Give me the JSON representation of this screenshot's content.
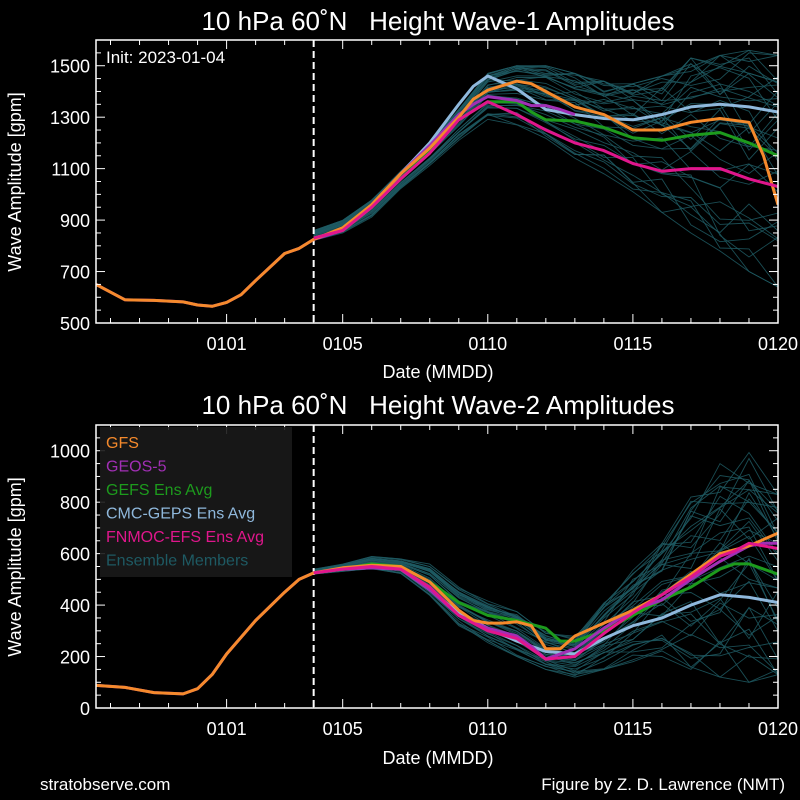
{
  "footer": {
    "left": "stratobserve.com",
    "right": "Figure by Z. D. Lawrence (NMT)"
  },
  "colors": {
    "background": "#000000",
    "axes": "#ffffff",
    "GFS": "#f58a2c",
    "GEOS-5": "#a12fb5",
    "GEFS Ens Avg": "#1d9b1d",
    "CMC-GEPS Ens Avg": "#8fb8dc",
    "FNMOC-EFS Ens Avg": "#e0168c",
    "Ensemble Members": "#1e5a63"
  },
  "chart_data": [
    {
      "type": "line",
      "title": "10 hPa 60˚N   Height Wave-1 Amplitudes",
      "xlabel": "Date (MMDD)",
      "ylabel": "Wave Amplitude [gpm]",
      "annotation": "Init: 2023-01-04",
      "x_tick_labels": [
        "0101",
        "0105",
        "0110",
        "0115",
        "0120"
      ],
      "x_tick_days": [
        0,
        4,
        9,
        14,
        19
      ],
      "y_ticks": [
        500,
        700,
        900,
        1100,
        1300,
        1500
      ],
      "xlim_days": [
        -4.5,
        19
      ],
      "ylim": [
        500,
        1600
      ],
      "init_day": 3,
      "grid": false,
      "legend": "none",
      "ensemble_members": "many thin lines spanning roughly the range shown",
      "ensemble_envelope": {
        "x": [
          3,
          4,
          5,
          6,
          7,
          8,
          9,
          10,
          11,
          12,
          13,
          14,
          15,
          16,
          17,
          18,
          19
        ],
        "low": [
          820,
          850,
          910,
          1020,
          1110,
          1210,
          1290,
          1270,
          1200,
          1140,
          1080,
          1010,
          930,
          850,
          780,
          700,
          640
        ],
        "high": [
          860,
          900,
          980,
          1090,
          1200,
          1330,
          1470,
          1500,
          1500,
          1470,
          1440,
          1430,
          1460,
          1530,
          1540,
          1560,
          1540
        ]
      },
      "series": [
        {
          "name": "GFS",
          "x": [
            -4.5,
            -3.5,
            -2.5,
            -1.5,
            -1,
            -0.5,
            0,
            0.5,
            1,
            2,
            2.5,
            3,
            4,
            5,
            6,
            7,
            8,
            8.5,
            9,
            10,
            10.5,
            11,
            12,
            13,
            14,
            15,
            16,
            17,
            18,
            18.5,
            19
          ],
          "values": [
            650,
            590,
            588,
            582,
            570,
            565,
            580,
            610,
            665,
            770,
            790,
            825,
            870,
            960,
            1080,
            1180,
            1300,
            1370,
            1405,
            1440,
            1430,
            1400,
            1340,
            1310,
            1250,
            1250,
            1280,
            1295,
            1280,
            1150,
            960
          ]
        },
        {
          "name": "GEOS-5",
          "x": [
            -4.5,
            -3.5,
            -2.5,
            -1.5,
            -1,
            -0.5,
            0,
            0.5,
            1,
            2,
            2.5,
            3,
            4,
            5,
            6,
            7,
            8,
            8.5,
            9,
            10,
            10.5,
            11,
            11.5,
            12
          ],
          "values": [
            650,
            590,
            588,
            582,
            570,
            565,
            580,
            610,
            665,
            770,
            790,
            825,
            860,
            960,
            1080,
            1190,
            1310,
            1350,
            1380,
            1365,
            1345,
            1345,
            1330,
            1310
          ]
        },
        {
          "name": "GEFS Ens Avg",
          "x": [
            3,
            4,
            5,
            6,
            7,
            8,
            9,
            10,
            10.5,
            11,
            12,
            13,
            14,
            15,
            16,
            17,
            18,
            19
          ],
          "values": [
            830,
            860,
            950,
            1060,
            1170,
            1290,
            1360,
            1360,
            1320,
            1290,
            1285,
            1260,
            1220,
            1210,
            1230,
            1240,
            1200,
            1150
          ]
        },
        {
          "name": "CMC-GEPS Ens Avg",
          "x": [
            3,
            4,
            5,
            6,
            7,
            8,
            8.5,
            9,
            10,
            11,
            12,
            13,
            14,
            15,
            16,
            17,
            18,
            19
          ],
          "values": [
            830,
            860,
            950,
            1080,
            1200,
            1350,
            1420,
            1460,
            1410,
            1330,
            1310,
            1295,
            1290,
            1310,
            1340,
            1350,
            1340,
            1320
          ]
        },
        {
          "name": "FNMOC-EFS Ens Avg",
          "x": [
            3,
            4,
            5,
            6,
            7,
            8,
            9,
            10,
            11,
            12,
            13,
            14,
            15,
            16,
            17,
            18,
            19
          ],
          "values": [
            830,
            860,
            950,
            1060,
            1160,
            1290,
            1360,
            1310,
            1250,
            1200,
            1170,
            1120,
            1090,
            1100,
            1100,
            1060,
            1030
          ]
        }
      ]
    },
    {
      "type": "line",
      "title": "10 hPa 60˚N   Height Wave-2 Amplitudes",
      "xlabel": "Date (MMDD)",
      "ylabel": "Wave Amplitude [gpm]",
      "x_tick_labels": [
        "0101",
        "0105",
        "0110",
        "0115",
        "0120"
      ],
      "x_tick_days": [
        0,
        4,
        9,
        14,
        19
      ],
      "y_ticks": [
        0,
        200,
        400,
        600,
        800,
        1000
      ],
      "xlim_days": [
        -4.5,
        19
      ],
      "ylim": [
        0,
        1100
      ],
      "init_day": 3,
      "grid": false,
      "legend": "top-left",
      "ensemble_envelope": {
        "x": [
          3,
          4,
          5,
          6,
          7,
          8,
          9,
          10,
          11,
          12,
          13,
          14,
          15,
          16,
          17,
          18,
          19
        ],
        "low": [
          520,
          530,
          540,
          520,
          430,
          320,
          250,
          200,
          150,
          120,
          150,
          180,
          200,
          150,
          120,
          100,
          130
        ],
        "high": [
          540,
          560,
          590,
          580,
          560,
          470,
          420,
          380,
          300,
          280,
          420,
          540,
          680,
          820,
          950,
          1000,
          830
        ]
      },
      "series": [
        {
          "name": "GFS",
          "x": [
            -4.5,
            -3.5,
            -2.5,
            -1.5,
            -1,
            -0.5,
            0,
            1,
            2,
            2.5,
            3,
            4,
            5,
            6,
            7,
            8,
            8.5,
            9,
            9.5,
            10,
            10.5,
            11,
            11.5,
            12,
            13,
            14,
            15,
            16,
            17,
            18,
            19
          ],
          "values": [
            88,
            80,
            60,
            55,
            75,
            130,
            210,
            340,
            450,
            500,
            525,
            545,
            555,
            550,
            490,
            380,
            340,
            330,
            330,
            335,
            320,
            230,
            230,
            280,
            330,
            380,
            440,
            520,
            600,
            630,
            680
          ]
        },
        {
          "name": "GEOS-5",
          "x": [
            -4.5,
            -3.5,
            -2.5,
            -1.5,
            -1,
            -0.5,
            0,
            1,
            2,
            2.5,
            3,
            4,
            5,
            6,
            7,
            8,
            9,
            10,
            10.5,
            11,
            12,
            13,
            14,
            15,
            16,
            17,
            17.5,
            18,
            18.5,
            19
          ],
          "values": [
            88,
            80,
            60,
            55,
            75,
            130,
            210,
            340,
            450,
            500,
            525,
            540,
            545,
            540,
            460,
            360,
            310,
            280,
            240,
            190,
            230,
            310,
            380,
            420,
            500,
            570,
            600,
            630,
            640,
            640
          ]
        },
        {
          "name": "GEFS Ens Avg",
          "x": [
            3,
            4,
            5,
            6,
            7,
            8,
            9,
            10,
            11,
            11.5,
            12,
            13,
            14,
            15,
            16,
            17,
            17.5,
            18,
            19
          ],
          "values": [
            525,
            540,
            560,
            550,
            490,
            410,
            360,
            340,
            310,
            260,
            260,
            300,
            360,
            420,
            470,
            540,
            560,
            560,
            520
          ]
        },
        {
          "name": "CMC-GEPS Ens Avg",
          "x": [
            3,
            4,
            5,
            6,
            7,
            8,
            9,
            10,
            11,
            12,
            13,
            14,
            15,
            16,
            17,
            18,
            19
          ],
          "values": [
            525,
            540,
            545,
            540,
            460,
            370,
            310,
            260,
            220,
            210,
            270,
            320,
            350,
            400,
            440,
            430,
            410
          ]
        },
        {
          "name": "FNMOC-EFS Ens Avg",
          "x": [
            3,
            4,
            5,
            6,
            7,
            8,
            9,
            10,
            11,
            12,
            13,
            14,
            15,
            16,
            17,
            17.5,
            18,
            19
          ],
          "values": [
            525,
            540,
            550,
            540,
            470,
            360,
            300,
            270,
            190,
            200,
            290,
            370,
            440,
            510,
            590,
            610,
            640,
            620
          ]
        }
      ],
      "legend_entries": [
        "GFS",
        "GEOS-5",
        "GEFS Ens Avg",
        "CMC-GEPS Ens Avg",
        "FNMOC-EFS Ens Avg",
        "Ensemble Members"
      ]
    }
  ]
}
